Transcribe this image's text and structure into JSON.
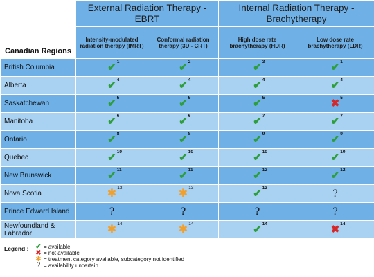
{
  "header": {
    "region_label": "Canadian Regions",
    "groups": [
      {
        "title": "External Radiation Therapy - EBRT"
      },
      {
        "title": "Internal Radiation Therapy - Brachytherapy"
      }
    ],
    "columns": [
      {
        "label": "Intensity-modulated radiation therapy (IMRT)"
      },
      {
        "label": "Conformal radiation therapy (3D - CRT)"
      },
      {
        "label": "High dose rate brachytherapy (HDR)"
      },
      {
        "label": "Low dose rate brachytherapy (LDR)"
      }
    ]
  },
  "rows": [
    {
      "region": "British Columbia",
      "cells": [
        {
          "mark": "check",
          "ref": "1"
        },
        {
          "mark": "check",
          "ref": "2"
        },
        {
          "mark": "check",
          "ref": "3"
        },
        {
          "mark": "check",
          "ref": "1"
        }
      ]
    },
    {
      "region": "Alberta",
      "cells": [
        {
          "mark": "check",
          "ref": "4"
        },
        {
          "mark": "check",
          "ref": "4"
        },
        {
          "mark": "check",
          "ref": "4"
        },
        {
          "mark": "check",
          "ref": "4"
        }
      ]
    },
    {
      "region": "Saskatchewan",
      "cells": [
        {
          "mark": "check",
          "ref": "5"
        },
        {
          "mark": "check",
          "ref": "5"
        },
        {
          "mark": "check",
          "ref": "5"
        },
        {
          "mark": "cross",
          "ref": "5"
        }
      ]
    },
    {
      "region": "Manitoba",
      "cells": [
        {
          "mark": "check",
          "ref": "6"
        },
        {
          "mark": "check",
          "ref": "6"
        },
        {
          "mark": "check",
          "ref": "7"
        },
        {
          "mark": "check",
          "ref": "7"
        }
      ]
    },
    {
      "region": "Ontario",
      "cells": [
        {
          "mark": "check",
          "ref": "8"
        },
        {
          "mark": "check",
          "ref": "8"
        },
        {
          "mark": "check",
          "ref": "9"
        },
        {
          "mark": "check",
          "ref": "9"
        }
      ]
    },
    {
      "region": "Quebec",
      "cells": [
        {
          "mark": "check",
          "ref": "10"
        },
        {
          "mark": "check",
          "ref": "10"
        },
        {
          "mark": "check",
          "ref": "10"
        },
        {
          "mark": "check",
          "ref": "10"
        }
      ]
    },
    {
      "region": "New Brunswick",
      "cells": [
        {
          "mark": "check",
          "ref": "11"
        },
        {
          "mark": "check",
          "ref": "11"
        },
        {
          "mark": "check",
          "ref": "12"
        },
        {
          "mark": "check",
          "ref": "12"
        }
      ]
    },
    {
      "region": "Nova Scotia",
      "cells": [
        {
          "mark": "star",
          "ref": "13"
        },
        {
          "mark": "star",
          "ref": "13"
        },
        {
          "mark": "check",
          "ref": "13"
        },
        {
          "mark": "question",
          "ref": ""
        }
      ]
    },
    {
      "region": "Prince Edward Island",
      "cells": [
        {
          "mark": "question",
          "ref": ""
        },
        {
          "mark": "question",
          "ref": ""
        },
        {
          "mark": "question",
          "ref": ""
        },
        {
          "mark": "question",
          "ref": ""
        }
      ]
    },
    {
      "region": "Newfoundland & Labrador",
      "cells": [
        {
          "mark": "star",
          "ref": "14"
        },
        {
          "mark": "star",
          "ref": "14"
        },
        {
          "mark": "check",
          "ref": "14"
        },
        {
          "mark": "cross",
          "ref": "14"
        }
      ]
    }
  ],
  "legend": {
    "title": "Legend :",
    "items": [
      {
        "mark": "check",
        "text": "= available"
      },
      {
        "mark": "cross",
        "text": "= not available"
      },
      {
        "mark": "star",
        "text": "= treatment category available, subcategory not identified"
      },
      {
        "mark": "question",
        "text": "= availability uncertain"
      }
    ]
  },
  "icons": {
    "check": "check-icon",
    "cross": "cross-icon",
    "star": "asterisk-icon",
    "question": "question-mark-icon"
  },
  "colors": {
    "header_blue": "#6fb0e6",
    "row_blue_dark": "#6fb0e6",
    "row_blue_light": "#a9d1f2",
    "check": "#2e9e3a",
    "cross": "#d62828",
    "star": "#f2a02c"
  }
}
